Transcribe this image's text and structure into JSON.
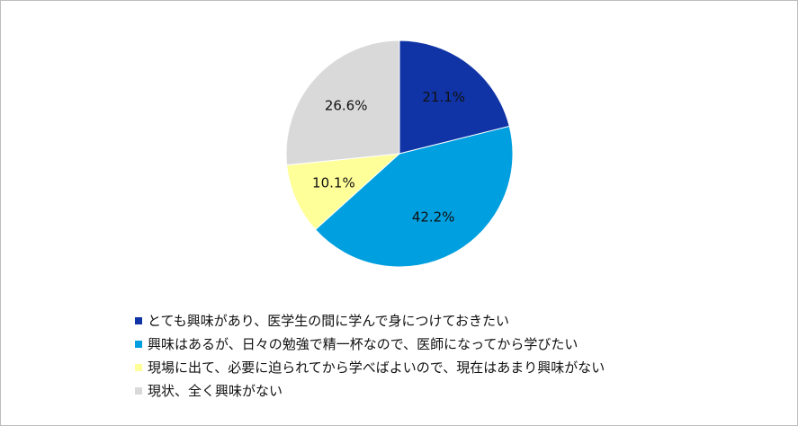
{
  "chart_data": {
    "type": "pie",
    "title": "",
    "start_angle": "12 o'clock",
    "direction": "clockwise",
    "legend_position": "bottom-left",
    "slices": [
      {
        "name": "とても興味があり、医学生の間に学んで身につけておきたい",
        "value": 21.1,
        "label": "21.1%",
        "color": "#1034a6"
      },
      {
        "name": "興味はあるが、日々の勉強で精一杯なので、医師になってから学びたい",
        "value": 42.2,
        "label": "42.2%",
        "color": "#009fdf"
      },
      {
        "name": "現場に出て、必要に迫られてから学べばよいので、現在はあまり興味がない",
        "value": 10.1,
        "label": "10.1%",
        "color": "#ffff99"
      },
      {
        "name": "現状、全く興味がない",
        "value": 26.6,
        "label": "26.6%",
        "color": "#d9d9d9"
      }
    ]
  }
}
